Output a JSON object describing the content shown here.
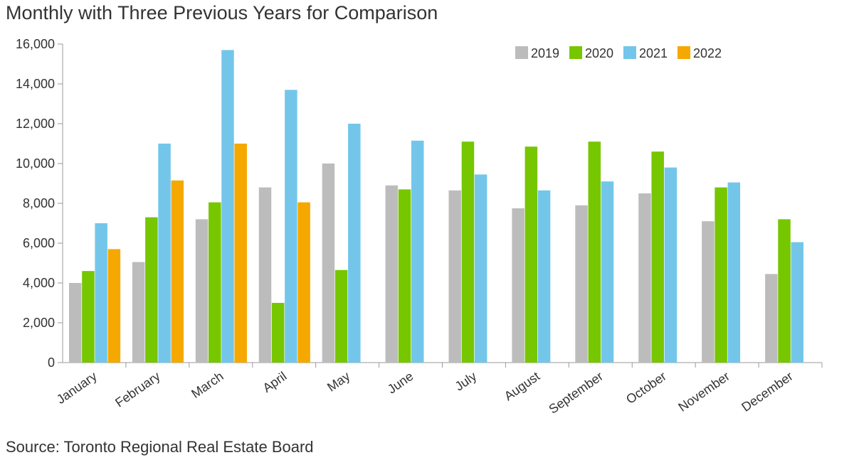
{
  "title": "Monthly with Three Previous Years for Comparison",
  "source": "Source: Toronto Regional Real Estate Board",
  "chart_data": {
    "type": "bar",
    "categories": [
      "January",
      "February",
      "March",
      "April",
      "May",
      "June",
      "July",
      "August",
      "September",
      "October",
      "November",
      "December"
    ],
    "series": [
      {
        "name": "2019",
        "color": "#bcbcbc",
        "values": [
          4000,
          5050,
          7200,
          8800,
          10000,
          8900,
          8650,
          7750,
          7900,
          8500,
          7100,
          4450
        ]
      },
      {
        "name": "2020",
        "color": "#76c600",
        "values": [
          4600,
          7300,
          8050,
          3000,
          4650,
          8700,
          11100,
          10850,
          11100,
          10600,
          8800,
          7200
        ]
      },
      {
        "name": "2021",
        "color": "#73c6ea",
        "values": [
          7000,
          11000,
          15700,
          13700,
          12000,
          11150,
          9450,
          8650,
          9100,
          9800,
          9050,
          6050
        ]
      },
      {
        "name": "2022",
        "color": "#f5a800",
        "values": [
          5700,
          9150,
          11000,
          8050,
          null,
          null,
          null,
          null,
          null,
          null,
          null,
          null
        ]
      }
    ],
    "ylim": [
      0,
      16000
    ],
    "yticks": [
      "0",
      "2,000",
      "4,000",
      "6,000",
      "8,000",
      "10,000",
      "12,000",
      "14,000",
      "16,000"
    ],
    "xlabel": "",
    "ylabel": "",
    "legend_position": "top-right",
    "grid": false
  }
}
